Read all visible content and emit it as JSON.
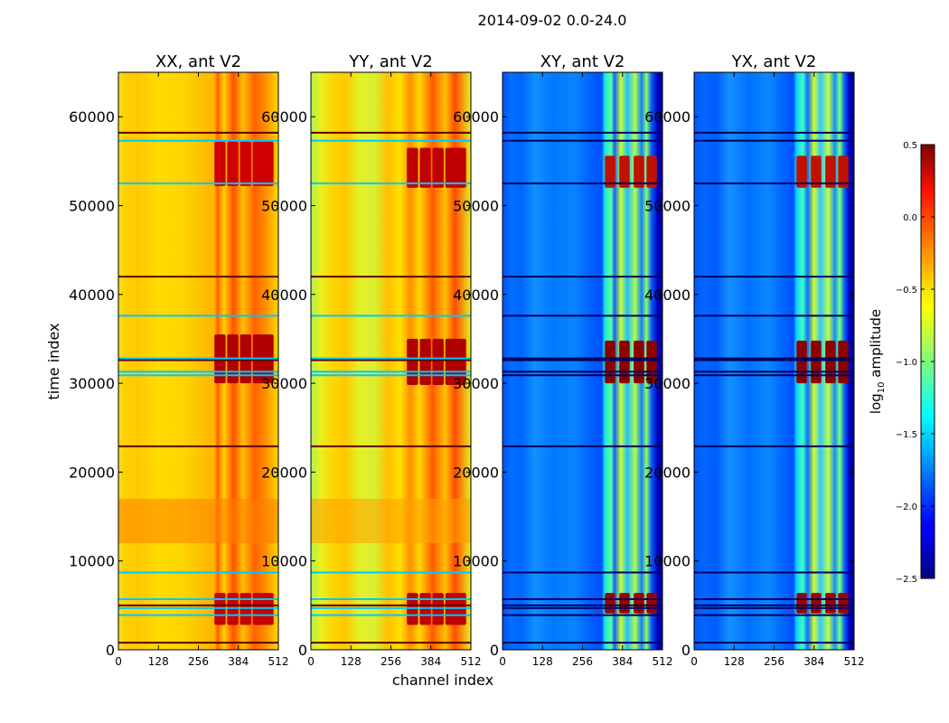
{
  "figure": {
    "suptitle": "2014-09-02 0.0-24.0",
    "xlabel": "channel index",
    "ylabel": "time index"
  },
  "chart_data": {
    "type": "heatmap",
    "panels": [
      {
        "title": "XX, ant V2",
        "kind": "xx"
      },
      {
        "title": "YY, ant V2",
        "kind": "yy"
      },
      {
        "title": "XY, ant V2",
        "kind": "xy"
      },
      {
        "title": "YX, ant V2",
        "kind": "yx"
      }
    ],
    "x": {
      "ticks": [
        0,
        128,
        256,
        384,
        512
      ],
      "range": [
        0,
        512
      ]
    },
    "y": {
      "ticks": [
        0,
        10000,
        20000,
        30000,
        40000,
        50000,
        60000
      ],
      "range": [
        0,
        65000
      ]
    },
    "colorbar": {
      "label_main": "log",
      "label_sub": "10",
      "label_rest": " amplitude",
      "range": [
        -2.5,
        0.5
      ],
      "ticks": [
        "0.5",
        "0.0",
        "−0.5",
        "−1.0",
        "−1.5",
        "−2.0",
        "−2.5"
      ],
      "tick_values": [
        0.5,
        0.0,
        -0.5,
        -1.0,
        -1.5,
        -2.0,
        -2.5
      ],
      "colormap": "jet"
    },
    "flag_rows": [
      800,
      3900,
      4700,
      5000,
      5700,
      8700,
      22900,
      30900,
      31300,
      32600,
      32800,
      37600,
      42000,
      52500,
      57300,
      58200
    ]
  }
}
